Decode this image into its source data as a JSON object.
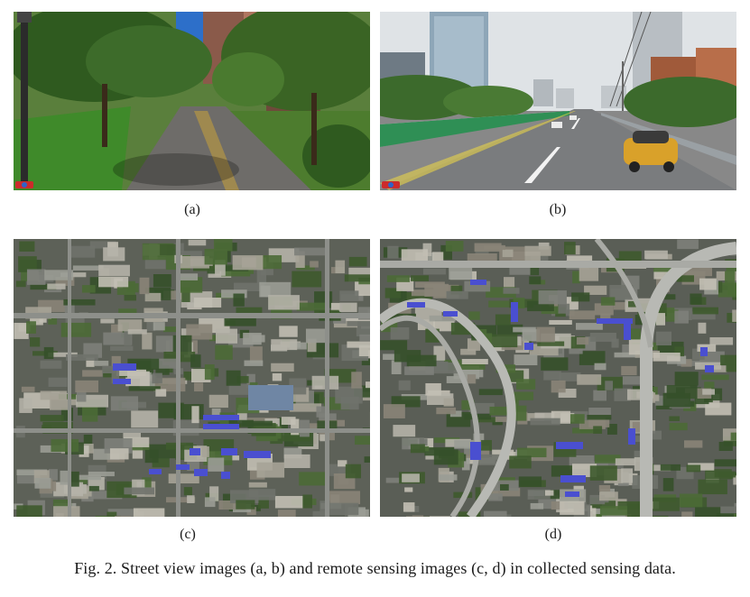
{
  "figure": {
    "panels": [
      {
        "id": "a",
        "label": "(a)",
        "kind": "street view image",
        "description_icon": "street-view-park-path"
      },
      {
        "id": "b",
        "label": "(b)",
        "kind": "street view image",
        "description_icon": "street-view-highway"
      },
      {
        "id": "c",
        "label": "(c)",
        "kind": "remote sensing image",
        "description_icon": "satellite-grid-city"
      },
      {
        "id": "d",
        "label": "(d)",
        "kind": "remote sensing image",
        "description_icon": "satellite-highway-interchange"
      }
    ],
    "caption": "Fig. 2.  Street view images (a, b) and remote sensing images (c, d) in collected sensing data."
  },
  "colors": {
    "sky": "#a9c8e8",
    "foliage": "#3d6b2a",
    "road": "#6b6f72",
    "satellite_base": "#5d6158",
    "roof_blue": "#4a4fd0",
    "background": "#ffffff"
  }
}
